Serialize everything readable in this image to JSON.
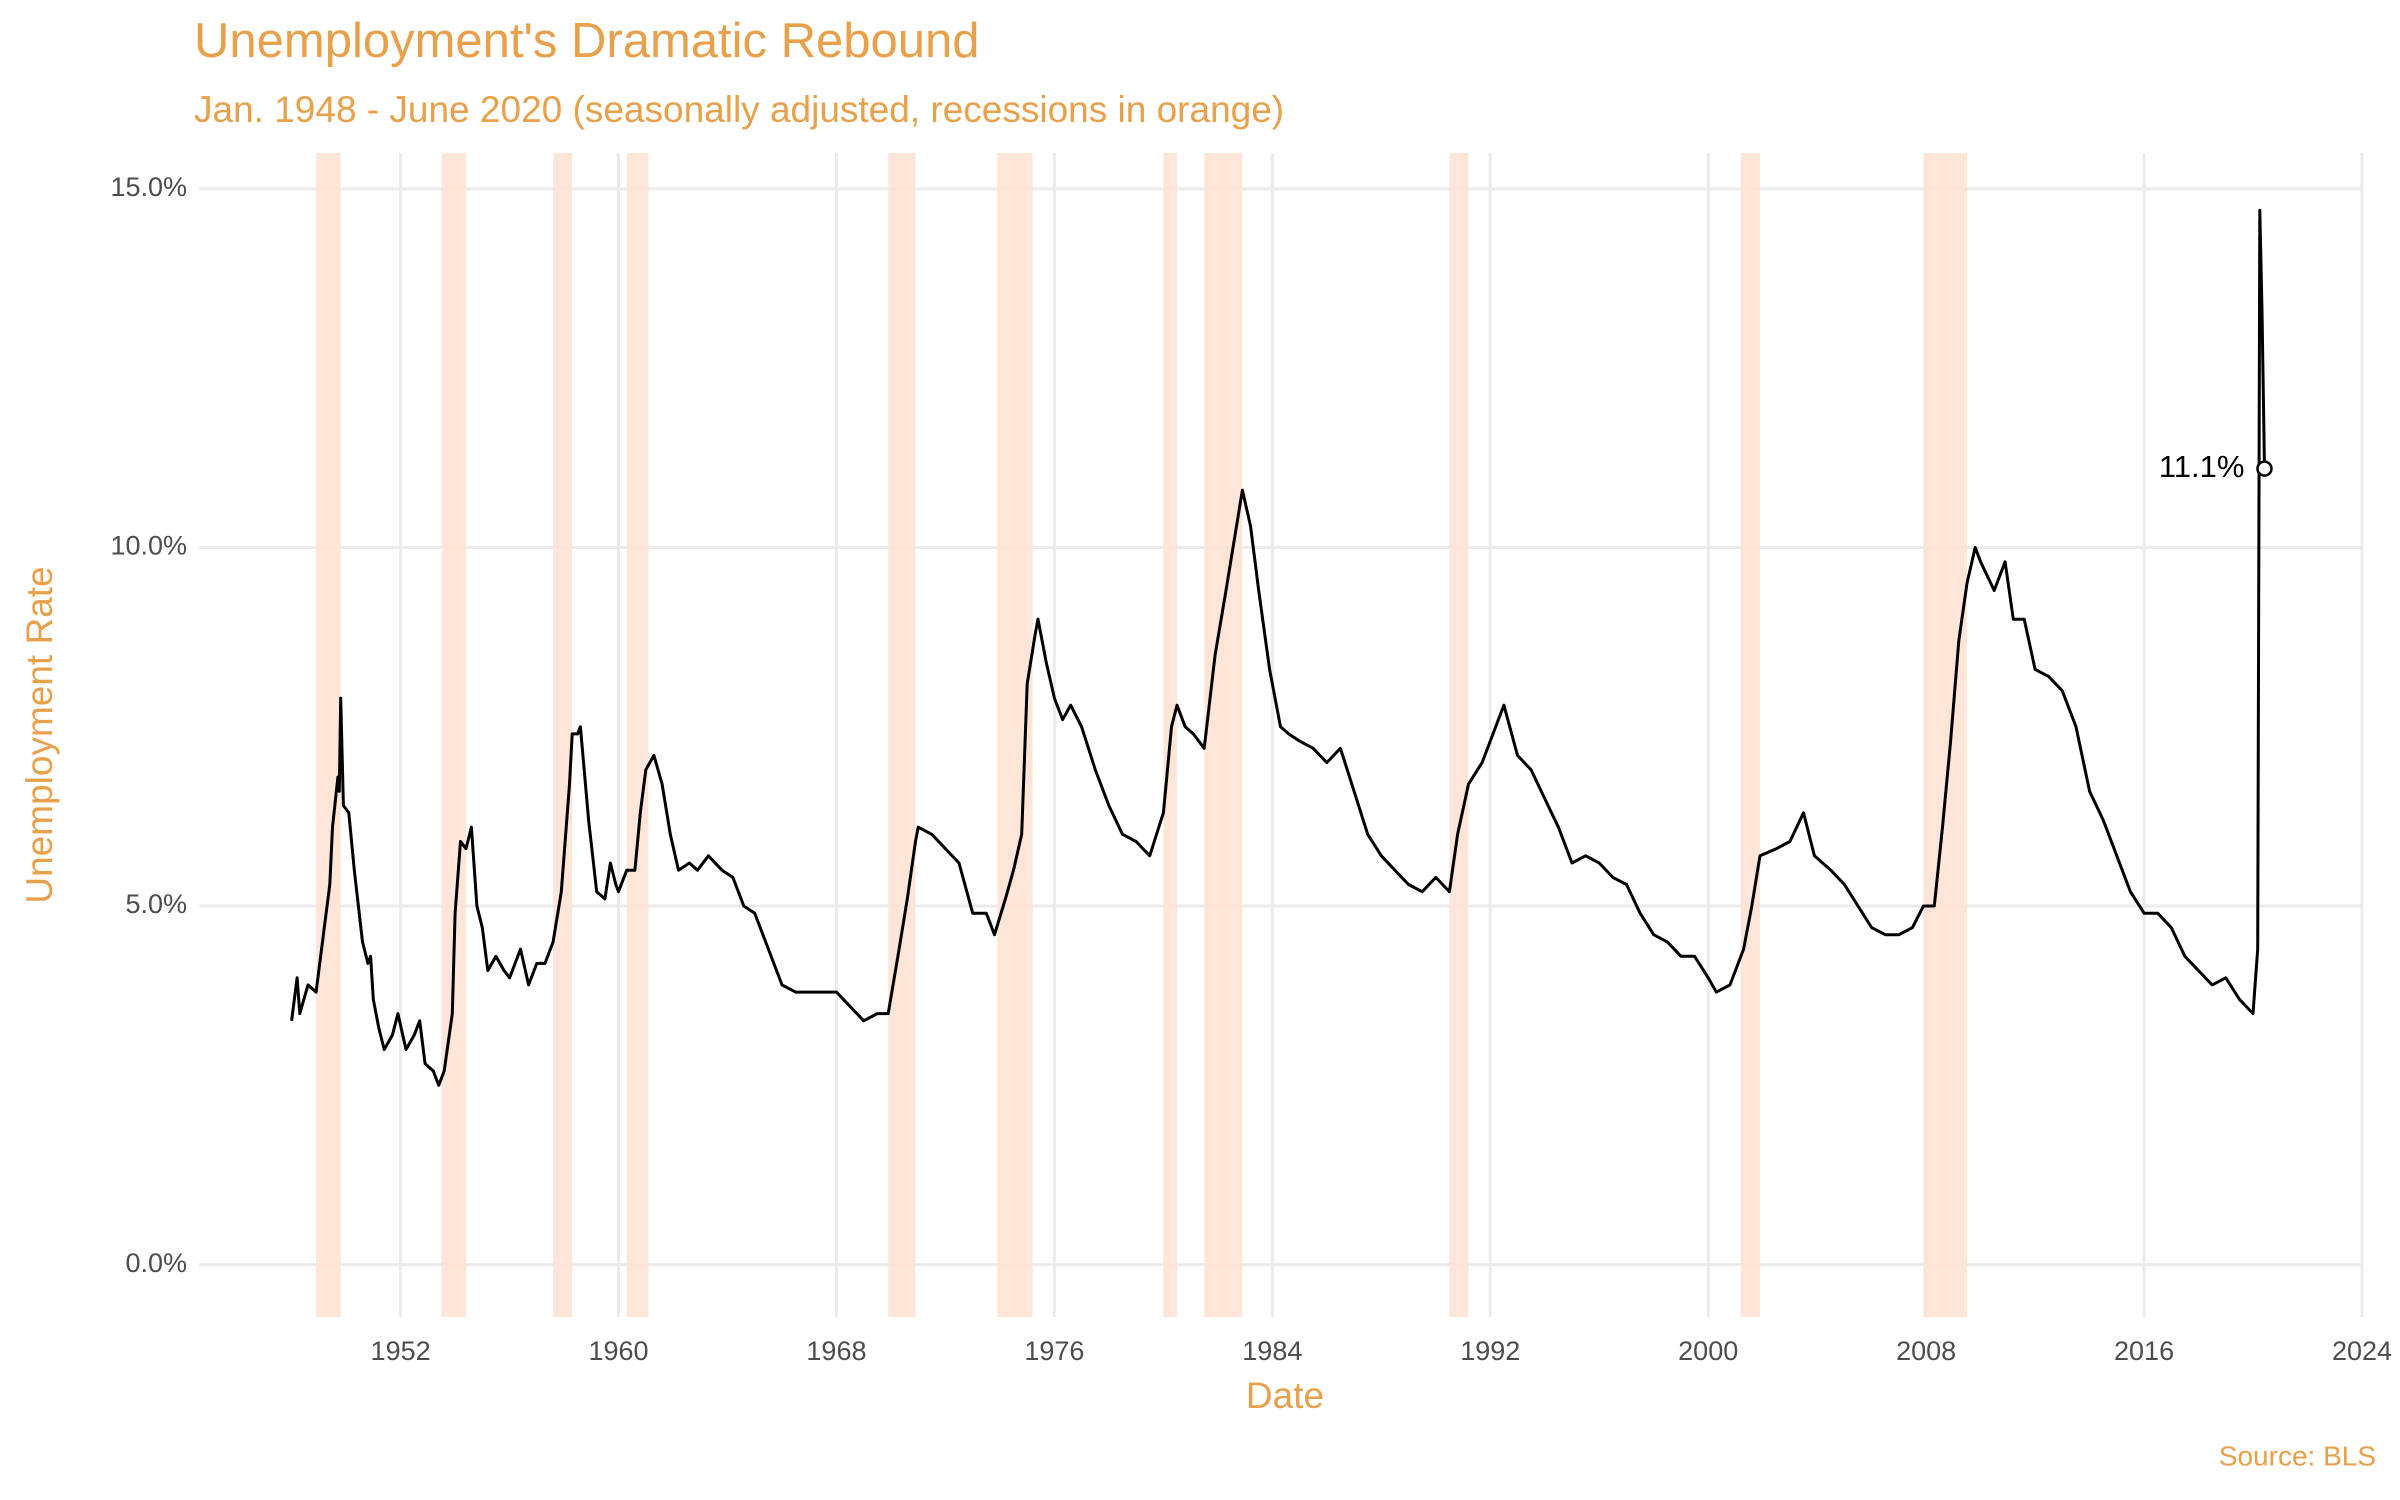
{
  "chart_data": {
    "type": "line",
    "title": "Unemployment's Dramatic Rebound",
    "subtitle": "Jan. 1948 - June 2020 (seasonally adjusted, recessions in orange)",
    "x_label": "Date",
    "y_label": "Unemployment Rate",
    "source": "Source: BLS",
    "color": "#000000",
    "accent_color": "#e8a04a",
    "recession_color": "#fde2d4",
    "grid": true,
    "xlim": [
      1944.6,
      2024
    ],
    "ylim": [
      -0.73,
      15.5
    ],
    "xticks": [
      1952,
      1960,
      1968,
      1976,
      1984,
      1992,
      2000,
      2008,
      2016,
      2024
    ],
    "yticks": [
      {
        "value": 0,
        "label": "0.0%"
      },
      {
        "value": 5,
        "label": "5.0%"
      },
      {
        "value": 10,
        "label": "10.0%"
      },
      {
        "value": 15,
        "label": "15.0%"
      }
    ],
    "recessions": [
      [
        1948.9,
        1949.8
      ],
      [
        1953.5,
        1954.4
      ],
      [
        1957.6,
        1958.3
      ],
      [
        1960.3,
        1961.1
      ],
      [
        1969.9,
        1970.9
      ],
      [
        1973.9,
        1975.2
      ],
      [
        1980.0,
        1980.5
      ],
      [
        1981.5,
        1982.9
      ],
      [
        1990.5,
        1991.2
      ],
      [
        2001.2,
        2001.9
      ],
      [
        2007.9,
        2009.5
      ]
    ],
    "x": [
      1948.0,
      1948.2,
      1948.3,
      1948.6,
      1948.9,
      1949.2,
      1949.4,
      1949.5,
      1949.7,
      1949.75,
      1949.8,
      1949.9,
      1950.1,
      1950.3,
      1950.6,
      1950.8,
      1950.9,
      1951.0,
      1951.2,
      1951.4,
      1951.7,
      1951.9,
      1952.2,
      1952.5,
      1952.7,
      1952.9,
      1953.2,
      1953.4,
      1953.6,
      1953.9,
      1954.0,
      1954.2,
      1954.4,
      1954.6,
      1954.8,
      1955.0,
      1955.2,
      1955.5,
      1955.8,
      1956.0,
      1956.4,
      1956.7,
      1957.0,
      1957.3,
      1957.6,
      1957.9,
      1958.2,
      1958.3,
      1958.5,
      1958.6,
      1958.9,
      1959.2,
      1959.5,
      1959.7,
      1959.9,
      1960.0,
      1960.3,
      1960.6,
      1960.8,
      1961.0,
      1961.3,
      1961.6,
      1961.9,
      1962.2,
      1962.6,
      1962.9,
      1963.3,
      1963.8,
      1964.2,
      1964.6,
      1965.0,
      1965.5,
      1966.0,
      1966.5,
      1967.0,
      1967.5,
      1968.0,
      1968.5,
      1969.0,
      1969.5,
      1969.9,
      1970.3,
      1970.6,
      1970.9,
      1971.0,
      1971.5,
      1972.0,
      1972.5,
      1973.0,
      1973.5,
      1973.8,
      1974.2,
      1974.5,
      1974.8,
      1975.0,
      1975.3,
      1975.4,
      1975.7,
      1976.0,
      1976.3,
      1976.6,
      1977.0,
      1977.5,
      1978.0,
      1978.5,
      1979.0,
      1979.5,
      1980.0,
      1980.3,
      1980.5,
      1980.8,
      1981.1,
      1981.5,
      1981.9,
      1982.3,
      1982.6,
      1982.9,
      1983.2,
      1983.5,
      1983.9,
      1984.3,
      1984.6,
      1985.0,
      1985.5,
      1986.0,
      1986.5,
      1987.0,
      1987.5,
      1988.0,
      1988.5,
      1989.0,
      1989.5,
      1990.0,
      1990.5,
      1990.8,
      1991.2,
      1991.7,
      1992.3,
      1992.5,
      1993.0,
      1993.5,
      1994.0,
      1994.5,
      1995.0,
      1995.5,
      1996.0,
      1996.5,
      1997.0,
      1997.5,
      1998.0,
      1998.5,
      1999.0,
      1999.5,
      2000.0,
      2000.3,
      2000.8,
      2001.3,
      2001.6,
      2001.9,
      2002.5,
      2003.0,
      2003.5,
      2003.9,
      2004.5,
      2005.0,
      2005.5,
      2006.0,
      2006.5,
      2007.0,
      2007.5,
      2007.9,
      2008.3,
      2008.6,
      2008.9,
      2009.2,
      2009.5,
      2009.8,
      2010.0,
      2010.5,
      2010.9,
      2011.2,
      2011.6,
      2012.0,
      2012.5,
      2013.0,
      2013.5,
      2014.0,
      2014.5,
      2015.0,
      2015.5,
      2016.0,
      2016.5,
      2017.0,
      2017.5,
      2018.0,
      2018.5,
      2019.0,
      2019.5,
      2020.0,
      2020.17,
      2020.25,
      2020.33,
      2020.42
    ],
    "values": [
      3.4,
      4.0,
      3.5,
      3.9,
      3.8,
      4.7,
      5.3,
      6.1,
      6.8,
      6.6,
      7.9,
      6.4,
      6.3,
      5.5,
      4.5,
      4.2,
      4.3,
      3.7,
      3.3,
      3.0,
      3.2,
      3.5,
      3.0,
      3.2,
      3.4,
      2.8,
      2.7,
      2.5,
      2.7,
      3.5,
      4.9,
      5.9,
      5.8,
      6.1,
      5.0,
      4.7,
      4.1,
      4.3,
      4.1,
      4.0,
      4.4,
      3.9,
      4.2,
      4.2,
      4.5,
      5.2,
      6.7,
      7.4,
      7.4,
      7.5,
      6.2,
      5.2,
      5.1,
      5.6,
      5.3,
      5.2,
      5.5,
      5.5,
      6.3,
      6.9,
      7.1,
      6.7,
      6.0,
      5.5,
      5.6,
      5.5,
      5.7,
      5.5,
      5.4,
      5.0,
      4.9,
      4.4,
      3.9,
      3.8,
      3.8,
      3.8,
      3.8,
      3.6,
      3.4,
      3.5,
      3.5,
      4.4,
      5.1,
      5.9,
      6.1,
      6.0,
      5.8,
      5.6,
      4.9,
      4.9,
      4.6,
      5.1,
      5.5,
      6.0,
      8.1,
      8.8,
      9.0,
      8.4,
      7.9,
      7.6,
      7.8,
      7.5,
      6.9,
      6.4,
      6.0,
      5.9,
      5.7,
      6.3,
      7.5,
      7.8,
      7.5,
      7.4,
      7.2,
      8.5,
      9.4,
      10.1,
      10.8,
      10.3,
      9.4,
      8.3,
      7.5,
      7.4,
      7.3,
      7.2,
      7.0,
      7.2,
      6.6,
      6.0,
      5.7,
      5.5,
      5.3,
      5.2,
      5.4,
      5.2,
      6.0,
      6.7,
      7.0,
      7.6,
      7.8,
      7.1,
      6.9,
      6.5,
      6.1,
      5.6,
      5.7,
      5.6,
      5.4,
      5.3,
      4.9,
      4.6,
      4.5,
      4.3,
      4.3,
      4.0,
      3.8,
      3.9,
      4.4,
      5.0,
      5.7,
      5.8,
      5.9,
      6.3,
      5.7,
      5.5,
      5.3,
      5.0,
      4.7,
      4.6,
      4.6,
      4.7,
      5.0,
      5.0,
      6.1,
      7.3,
      8.7,
      9.5,
      10.0,
      9.8,
      9.4,
      9.8,
      9.0,
      9.0,
      8.3,
      8.2,
      8.0,
      7.5,
      6.6,
      6.2,
      5.7,
      5.2,
      4.9,
      4.9,
      4.7,
      4.3,
      4.1,
      3.9,
      4.0,
      3.7,
      3.5,
      4.4,
      14.7,
      13.3,
      11.1
    ],
    "annotation": {
      "x": 2020.42,
      "value": 11.1,
      "label": "11.1%"
    }
  }
}
